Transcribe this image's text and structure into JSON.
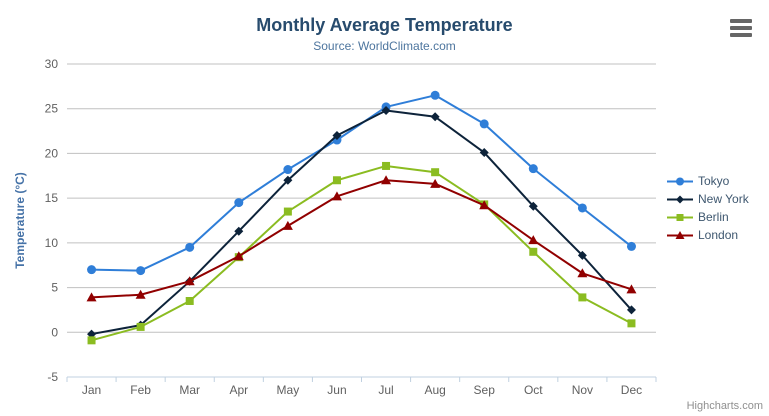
{
  "header": {
    "title": "Monthly Average Temperature",
    "subtitle": "Source: WorldClimate.com"
  },
  "menu": {
    "icon": "hamburger-icon"
  },
  "credits": "Highcharts.com",
  "colors": {
    "title": "#274b6d",
    "subtitle": "#4d759e",
    "axis_label": "#606060",
    "axis_title": "#4572a7",
    "grid_line": "#c0c0c0",
    "axis_line": "#c0d0e0",
    "legend_text": "#3e576f",
    "credits": "#909090",
    "menu_icon": "#666666"
  },
  "chart_data": {
    "type": "line",
    "title": "Monthly Average Temperature",
    "subtitle": "Source: WorldClimate.com",
    "categories": [
      "Jan",
      "Feb",
      "Mar",
      "Apr",
      "May",
      "Jun",
      "Jul",
      "Aug",
      "Sep",
      "Oct",
      "Nov",
      "Dec"
    ],
    "series": [
      {
        "name": "Tokyo",
        "color": "#2f7ed8",
        "marker": "circle",
        "values": [
          7.0,
          6.9,
          9.5,
          14.5,
          18.2,
          21.5,
          25.2,
          26.5,
          23.3,
          18.3,
          13.9,
          9.6
        ]
      },
      {
        "name": "New York",
        "color": "#0d233a",
        "marker": "diamond",
        "values": [
          -0.2,
          0.8,
          5.7,
          11.3,
          17.0,
          22.0,
          24.8,
          24.1,
          20.1,
          14.1,
          8.6,
          2.5
        ]
      },
      {
        "name": "Berlin",
        "color": "#8bbc21",
        "marker": "square",
        "values": [
          -0.9,
          0.6,
          3.5,
          8.4,
          13.5,
          17.0,
          18.6,
          17.9,
          14.3,
          9.0,
          3.9,
          1.0
        ]
      },
      {
        "name": "London",
        "color": "#910000",
        "marker": "triangle",
        "values": [
          3.9,
          4.2,
          5.7,
          8.5,
          11.9,
          15.2,
          17.0,
          16.6,
          14.2,
          10.3,
          6.6,
          4.8
        ]
      }
    ],
    "xlabel": "",
    "ylabel": "Temperature (°C)",
    "ylim": [
      -5,
      30
    ],
    "yticks": [
      -5,
      0,
      5,
      10,
      15,
      20,
      25,
      30
    ],
    "grid": true,
    "legend_position": "right"
  }
}
